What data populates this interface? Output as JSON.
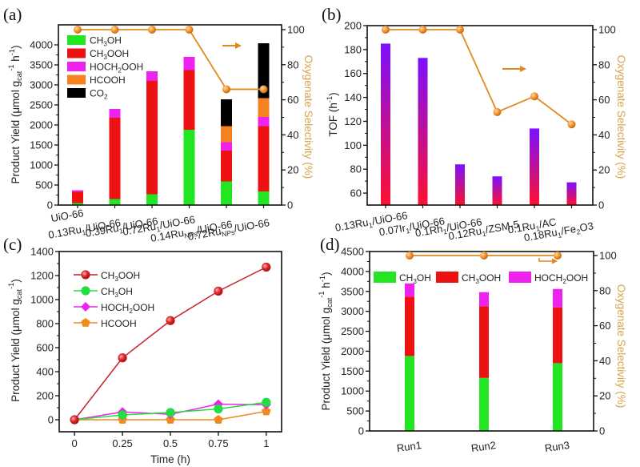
{
  "chart_data": [
    {
      "panel": "(a)",
      "type": "bar",
      "stacked": true,
      "categories": [
        "UiO-66",
        "0.13Ru1/UiO-66",
        "0.39Ru1/UiO-66",
        "0.72Ru1/UiO-66",
        "0.14RuNPs/UiO-66",
        "0.72RuNPs/UiO-66"
      ],
      "category_labels": [
        {
          "main": "UiO-66",
          "sub": "",
          "rest": ""
        },
        {
          "main": "0.13Ru",
          "sub": "1",
          "rest": "/UiO-66"
        },
        {
          "main": "0.39Ru",
          "sub": "1",
          "rest": "/UiO-66"
        },
        {
          "main": "0.72Ru",
          "sub": "1",
          "rest": "/UiO-66"
        },
        {
          "main": "0.14Ru",
          "sub": "NPs",
          "rest": "/UiO-66"
        },
        {
          "main": "0.72Ru",
          "sub": "NPs",
          "rest": "/UiO-66"
        }
      ],
      "series": [
        {
          "name": "CH3OH",
          "label_main": "CH",
          "label_sub": "3",
          "label_rest": "OH",
          "color": "#22e622",
          "values": [
            50,
            150,
            270,
            1880,
            590,
            340
          ]
        },
        {
          "name": "CH3OOH",
          "label_main": "CH",
          "label_sub": "3",
          "label_rest": "OOH",
          "color": "#ee1111",
          "values": [
            280,
            2030,
            2830,
            1490,
            770,
            1630
          ]
        },
        {
          "name": "HOCH2OOH",
          "label_main": "HOCH",
          "label_sub": "2",
          "label_rest": "OOH",
          "color": "#ee22ee",
          "values": [
            40,
            220,
            240,
            330,
            210,
            230
          ]
        },
        {
          "name": "HCOOH",
          "label_main": "HCOOH",
          "label_sub": "",
          "label_rest": "",
          "color": "#f5821f",
          "values": [
            0,
            0,
            0,
            0,
            400,
            470
          ]
        },
        {
          "name": "CO2",
          "label_main": "CO",
          "label_sub": "2",
          "label_rest": "",
          "color": "#000000",
          "values": [
            0,
            0,
            0,
            0,
            670,
            1370
          ]
        }
      ],
      "line_series": {
        "name": "Oxygenate Selectivity",
        "axis": "right",
        "color": "#e08a1e",
        "values": [
          100,
          100,
          100,
          100,
          66,
          66
        ]
      },
      "ylabel": "Product Yield (μmol g_cat^-1 h^-1)",
      "ylabel_parts": {
        "a": "Product Yield (μmol g",
        "sub": "cat",
        "sup": "-1",
        "b": " h",
        "sup2": "-1",
        "c": ")"
      },
      "y2label": "Oxygenate Selectivity (%)",
      "ylim": [
        0,
        4500
      ],
      "yticks": [
        0,
        500,
        1000,
        1500,
        2000,
        2500,
        3000,
        3500,
        4000
      ],
      "y2lim": [
        0,
        100
      ],
      "y2ticks": [
        0,
        20,
        40,
        60,
        80,
        100
      ],
      "legend_position": "top-left",
      "annotation": "arrow pointing right (to right axis)"
    },
    {
      "panel": "(b)",
      "type": "bar",
      "categories": [
        "0.13Ru1/UiO-66",
        "0.07Ir1/UiO-66",
        "0.1Rh1/UiO-66",
        "0.12Ru1/ZSM-5",
        "0.1Ru1/AC",
        "0.18Ru1/Fe2O3"
      ],
      "category_labels": [
        {
          "main": "0.13Ru",
          "sub": "1",
          "rest": "/UiO-66",
          "sub2": "",
          "rest2": ""
        },
        {
          "main": "0.07Ir",
          "sub": "1",
          "rest": "/UiO-66",
          "sub2": "",
          "rest2": ""
        },
        {
          "main": "0.1Rh",
          "sub": "1",
          "rest": "/UiO-66",
          "sub2": "",
          "rest2": ""
        },
        {
          "main": "0.12Ru",
          "sub": "1",
          "rest": "/ZSM-5",
          "sub2": "",
          "rest2": ""
        },
        {
          "main": "0.1Ru",
          "sub": "1",
          "rest": "/AC",
          "sub2": "",
          "rest2": ""
        },
        {
          "main": "0.18Ru",
          "sub": "1",
          "rest": "/Fe",
          "sub2": "2",
          "rest2": "O3"
        }
      ],
      "values": [
        185,
        173,
        84,
        74,
        114,
        69
      ],
      "bar_gradient": {
        "top": "#7b10ff",
        "bottom": "#ff1030"
      },
      "line_series": {
        "name": "Oxygenate Selectivity",
        "axis": "right",
        "color": "#e08a1e",
        "values": [
          100,
          100,
          100,
          53,
          62,
          46
        ]
      },
      "ylabel": "TOF (h^-1)",
      "ylabel_parts": {
        "a": "TOF (h",
        "sup": "-1",
        "c": ")"
      },
      "y2label": "Oxygenate Selectivity (%)",
      "ylim": [
        50,
        200
      ],
      "yticks": [
        60,
        80,
        100,
        120,
        140,
        160,
        180,
        200
      ],
      "y2lim": [
        0,
        100
      ],
      "y2ticks": [
        0,
        20,
        40,
        60,
        80,
        100
      ],
      "annotation": "arrow pointing right (to right axis)"
    },
    {
      "panel": "(c)",
      "type": "line",
      "x": [
        0,
        0.25,
        0.5,
        0.75,
        1
      ],
      "xticklabels": [
        "0",
        "0.25",
        "0.5",
        "0.75",
        "1"
      ],
      "series": [
        {
          "name": "CH3OOH",
          "label_main": "CH",
          "label_sub": "3",
          "label_rest": "OOH",
          "marker": "circle",
          "color": "#c8202a",
          "values": [
            0,
            515,
            825,
            1070,
            1270
          ]
        },
        {
          "name": "CH3OH",
          "label_main": "CH",
          "label_sub": "3",
          "label_rest": "OH",
          "marker": "circle",
          "color": "#22dd44",
          "values": [
            0,
            40,
            60,
            90,
            145
          ]
        },
        {
          "name": "HOCH2OOH",
          "label_main": "HOCH",
          "label_sub": "2",
          "label_rest": "OOH",
          "marker": "diamond",
          "color": "#ee22ee",
          "values": [
            0,
            65,
            45,
            130,
            125
          ]
        },
        {
          "name": "HCOOH",
          "label_main": "HCOOH",
          "label_sub": "",
          "label_rest": "",
          "marker": "pentagon",
          "color": "#f08a1e",
          "values": [
            0,
            0,
            0,
            0,
            70
          ]
        }
      ],
      "xlabel": "Time (h)",
      "ylabel": "Product Yield (μmol g_cat^-1)",
      "ylabel_parts": {
        "a": "Product Yield (μmol g",
        "sub": "cat",
        "sup": "-1",
        "c": ")"
      },
      "xlim": [
        -0.08,
        1.08
      ],
      "ylim": [
        -100,
        1400
      ],
      "yticks": [
        0,
        200,
        400,
        600,
        800,
        1000,
        1200,
        1400
      ],
      "legend_position": "top-left"
    },
    {
      "panel": "(d)",
      "type": "bar",
      "stacked": true,
      "categories": [
        "Run1",
        "Run2",
        "Run3"
      ],
      "series": [
        {
          "name": "CH3OH",
          "label_main": "CH",
          "label_sub": "3",
          "label_rest": "OH",
          "color": "#22e622",
          "values": [
            1880,
            1330,
            1700
          ]
        },
        {
          "name": "CH3OOH",
          "label_main": "CH",
          "label_sub": "3",
          "label_rest": "OOH",
          "color": "#ee1111",
          "values": [
            1490,
            1800,
            1400
          ]
        },
        {
          "name": "HOCH2OOH",
          "label_main": "HOCH",
          "label_sub": "2",
          "label_rest": "OOH",
          "color": "#ee22ee",
          "values": [
            330,
            350,
            460
          ]
        }
      ],
      "line_series": {
        "name": "Oxygenate Selectivity",
        "axis": "right",
        "color": "#e08a1e",
        "values": [
          100,
          100,
          100
        ]
      },
      "ylabel": "Product Yield (μmol g_cat^-1 h^-1)",
      "ylabel_parts": {
        "a": "Product Yield (μmol g",
        "sub": "cat",
        "sup": "-1",
        "b": " h",
        "sup2": "-1",
        "c": ")"
      },
      "y2label": "Oxygenate Selectivity (%)",
      "ylim": [
        0,
        4500
      ],
      "yticks": [
        0,
        500,
        1000,
        1500,
        2000,
        2500,
        3000,
        3500,
        4000,
        4500
      ],
      "y2lim": [
        0,
        100
      ],
      "y2ticks": [
        0,
        20,
        40,
        60,
        80,
        100
      ],
      "legend_position": "top (horizontal)",
      "annotation": "arrow pointing right (to right axis)"
    }
  ]
}
